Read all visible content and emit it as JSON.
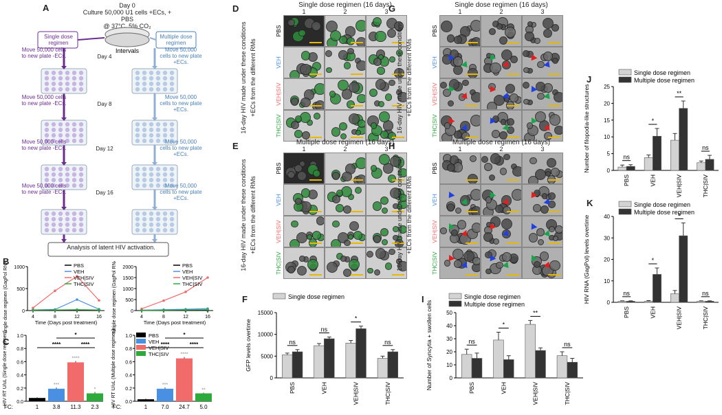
{
  "panels": {
    "A": {
      "letter": "A",
      "day0": "Day 0",
      "culture": "Culture 50,000 U1 cells +ECs, + PBS",
      "conditions": "@ 37°C, 5% CO₂",
      "intervals": "Intervals",
      "single_label": "Single dose regimen",
      "multiple_label": "Multiple dose regimen",
      "left_steps": [
        "Move 50,000 cells to new plate -ECs.",
        "Move 50,000 cells to new plate -ECs.",
        "Move 50,000 cells to new plate -ECs.",
        "Move 50,000 cells to new plate -ECs."
      ],
      "right_steps": [
        "Move 50,000 cells to new plate +ECs.",
        "Move 50,000 cells to new plate +ECs.",
        "Move 50,000 cells to new plate +ECs.",
        "Move 50,000 cells to new plate +ECs."
      ],
      "days": [
        "Day 4",
        "Day 8",
        "Day 12",
        "Day 16"
      ],
      "analysis": "Analysis of latent HIV activation."
    },
    "D": {
      "letter": "D",
      "title": "Single dose regimen (16 days)",
      "cols": [
        "1",
        "2",
        "3"
      ]
    },
    "E": {
      "letter": "E",
      "title": "Multiple dose regimen (16 days)",
      "cols": [
        "1",
        "2",
        "3"
      ]
    },
    "G": {
      "letter": "G",
      "title": "Single dose regimen (16 days)",
      "cols": [
        "1",
        "2",
        "3"
      ]
    },
    "H": {
      "letter": "H",
      "title": "Multiple dose regimen (16 days)",
      "cols": [
        "1",
        "2",
        "3"
      ]
    },
    "row_labels": [
      "PBS",
      "VEH",
      "VEH|SIV",
      "THC|SIV"
    ],
    "side_caption_1": "16-day HIV made under these conditions",
    "side_caption_2": "+ECs from the different RMs",
    "B": {
      "letter": "B"
    },
    "C": {
      "letter": "C"
    },
    "F": {
      "letter": "F"
    },
    "I": {
      "letter": "I"
    },
    "J": {
      "letter": "J"
    },
    "K": {
      "letter": "K"
    }
  },
  "colors": {
    "pbs": "#000000",
    "veh": "#4a90e2",
    "vehsiv": "#f26b6b",
    "thcsiv": "#2eaa3c",
    "single": "#d3d3d3",
    "multiple": "#333333",
    "arrow_purple": "#6a2c91",
    "arrow_blue": "#8fb0d6",
    "well_purple": "#c8b6e2",
    "well_blue": "#b7cbe4"
  },
  "chart_data": [
    {
      "id": "B-left",
      "type": "line",
      "xlabel": "Time (Days post treatment)",
      "ylabel": "Single dose regimen (GagPol RNA: Fold Δ)",
      "x": [
        4,
        8,
        12,
        16
      ],
      "ylim": [
        0,
        1000
      ],
      "yticks": [
        0,
        500,
        1000
      ],
      "legend": [
        "PBS",
        "VEH",
        "VEH|SIV",
        "THC|SIV"
      ],
      "series": [
        {
          "name": "PBS",
          "values": [
            10,
            10,
            12,
            10
          ]
        },
        {
          "name": "VEH",
          "values": [
            15,
            25,
            250,
            30
          ]
        },
        {
          "name": "VEH|SIV",
          "values": [
            60,
            450,
            780,
            230
          ]
        },
        {
          "name": "THC|SIV",
          "values": [
            12,
            15,
            20,
            15
          ]
        }
      ]
    },
    {
      "id": "B-right",
      "type": "line",
      "xlabel": "Time (Days post treatment)",
      "ylabel": "Multiple dose regimen (GagPol RNA: Fold Δ)",
      "x": [
        4,
        8,
        12,
        16
      ],
      "ylim": [
        0,
        2000
      ],
      "yticks": [
        0,
        500,
        1000,
        1500,
        2000
      ],
      "legend": [
        "PBS",
        "VEH",
        "VEH|SIV",
        "THC|SIV"
      ],
      "series": [
        {
          "name": "PBS",
          "values": [
            10,
            10,
            12,
            10
          ]
        },
        {
          "name": "VEH",
          "values": [
            20,
            40,
            60,
            90
          ]
        },
        {
          "name": "VEH|SIV",
          "values": [
            80,
            450,
            850,
            1500
          ]
        },
        {
          "name": "THC|SIV",
          "values": [
            12,
            20,
            30,
            40
          ]
        }
      ]
    },
    {
      "id": "C-left",
      "type": "bar",
      "ylabel": "HIV RT U/uL (Single dose regimen)",
      "categories": [
        "PBS",
        "VEH",
        "VEH|SIV",
        "THC|SIV"
      ],
      "values": [
        0.05,
        0.19,
        0.59,
        0.12
      ],
      "errors": [
        0.01,
        0.02,
        0.02,
        0.02
      ],
      "ylim": [
        0,
        1.0
      ],
      "yticks": [
        0.0,
        0.2,
        0.4,
        0.6,
        0.8,
        1.0
      ],
      "fc_label": "FC:",
      "fc": [
        "1",
        "3.8",
        "11.3",
        "2.3"
      ],
      "bar_stars": [
        "",
        "***",
        "****",
        "*"
      ],
      "sig_lines": [
        "*",
        "****",
        "****"
      ]
    },
    {
      "id": "C-right",
      "type": "bar",
      "ylabel": "HIV RT U/uL (Multiple dose regimen)",
      "categories": [
        "PBS",
        "VEH",
        "VEH|SIV",
        "THC|SIV"
      ],
      "values": [
        0.03,
        0.19,
        0.65,
        0.12
      ],
      "errors": [
        0.01,
        0.02,
        0.02,
        0.01
      ],
      "ylim": [
        0,
        1.0
      ],
      "yticks": [
        0.0,
        0.2,
        0.4,
        0.6,
        0.8,
        1.0
      ],
      "fc_label": "FC:",
      "fc": [
        "1",
        "7.0",
        "24.7",
        "5.0"
      ],
      "bar_stars": [
        "",
        "***",
        "****",
        "**"
      ],
      "sig_lines": [
        "*",
        "****",
        "****"
      ],
      "legend": [
        "PBS",
        "VEH",
        "VEH|SIV",
        "THC|SIV"
      ]
    },
    {
      "id": "F",
      "type": "bar",
      "ylabel": "GFP levels overtime",
      "categories": [
        "PBS",
        "VEH",
        "VEH|SIV",
        "THC|SIV"
      ],
      "legend": [
        "Single dose regimen"
      ],
      "series": [
        {
          "name": "Single dose regimen",
          "values": [
            5300,
            7400,
            8000,
            4500
          ],
          "errors": [
            400,
            500,
            600,
            500
          ]
        },
        {
          "name": "",
          "values": [
            6000,
            9000,
            11300,
            6000
          ],
          "errors": [
            500,
            400,
            600,
            500
          ]
        }
      ],
      "ylim": [
        0,
        15000
      ],
      "yticks": [
        0,
        5000,
        10000,
        15000
      ],
      "sig": [
        "ns",
        "ns",
        "*",
        "ns"
      ]
    },
    {
      "id": "I",
      "type": "bar",
      "ylabel": "Number of Syncytia + swollen cells",
      "categories": [
        "PBS",
        "VEH",
        "VEH|SIV",
        "THC|SIV"
      ],
      "legend": [
        "Single dose regimen",
        "Multiple dose regimen"
      ],
      "series": [
        {
          "name": "Single dose regimen",
          "values": [
            18,
            29,
            41,
            17
          ],
          "errors": [
            4,
            6,
            3,
            3
          ]
        },
        {
          "name": "Multiple dose regimen",
          "values": [
            15,
            14,
            21,
            12
          ],
          "errors": [
            4,
            3,
            2,
            3
          ]
        }
      ],
      "ylim": [
        0,
        50
      ],
      "yticks": [
        0,
        10,
        20,
        30,
        40,
        50
      ],
      "sig": [
        "ns",
        "*",
        "**",
        "ns"
      ]
    },
    {
      "id": "J",
      "type": "bar",
      "ylabel": "Number of filopodia-like structures",
      "categories": [
        "PBS",
        "VEH",
        "VEH|SIV",
        "THC|SIV"
      ],
      "legend": [
        "Single dose regimen",
        "Multiple dose regimen"
      ],
      "series": [
        {
          "name": "Single dose regimen",
          "values": [
            1.0,
            3.8,
            9.0,
            2.3
          ],
          "errors": [
            0.6,
            0.8,
            2.0,
            0.5
          ]
        },
        {
          "name": "Multiple dose regimen",
          "values": [
            1.2,
            10.2,
            18.5,
            3.3
          ],
          "errors": [
            0.5,
            2.3,
            2.2,
            1.2
          ]
        }
      ],
      "ylim": [
        0,
        25
      ],
      "yticks": [
        0,
        5,
        10,
        15,
        20,
        25
      ],
      "sig": [
        "ns",
        "*",
        "**",
        "ns"
      ]
    },
    {
      "id": "K",
      "type": "bar",
      "ylabel": "HIV RNA (GagPol) levels overtime",
      "categories": [
        "PBS",
        "VEH",
        "VEH|SIV",
        "THC|SIV"
      ],
      "legend": [
        "Single dose regimen",
        "Multiple dose regimen"
      ],
      "series": [
        {
          "name": "Single dose regimen",
          "values": [
            0.5,
            0.5,
            4.0,
            0.5
          ],
          "errors": [
            0.2,
            0.3,
            1.5,
            0.2
          ]
        },
        {
          "name": "Multiple dose regimen",
          "values": [
            0.5,
            13.0,
            31.0,
            0.5
          ],
          "errors": [
            0.2,
            3.0,
            6.0,
            0.2
          ]
        }
      ],
      "ylim": [
        0,
        40
      ],
      "yticks": [
        0,
        10,
        20,
        30,
        40
      ],
      "sig": [
        "ns",
        "*",
        "*",
        "ns"
      ]
    }
  ]
}
